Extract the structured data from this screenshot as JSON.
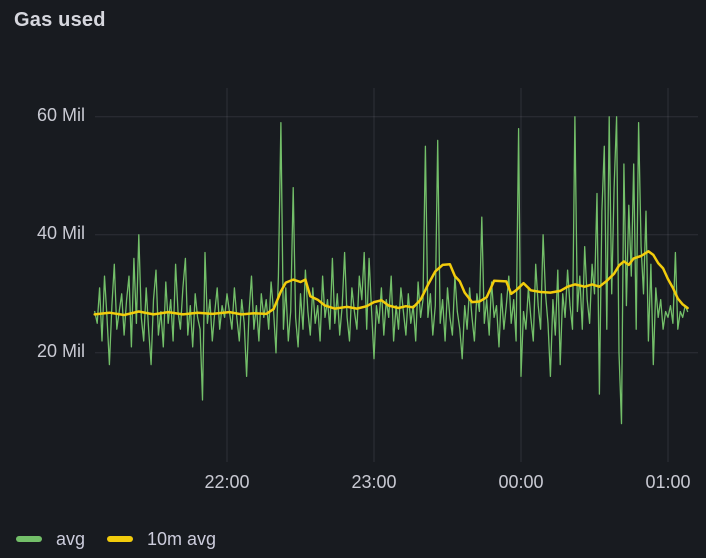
{
  "panel": {
    "title": "Gas used"
  },
  "colors": {
    "background": "#181b20",
    "title_text": "#d6d7de",
    "tick_text": "#c9cad3",
    "grid": "rgba(204,204,220,0.12)",
    "avg_series": "#73bf69",
    "ten_min_avg_series": "#f2cc0c"
  },
  "chart_data": {
    "type": "line",
    "title": "Gas used",
    "unit": "Mil (gas used, millions)",
    "grid": true,
    "legend_position": "bottom-left",
    "x_axis": {
      "start_time": "21:05",
      "end_time": "01:07",
      "tick_labels": [
        "22:00",
        "23:00",
        "00:00",
        "01:00"
      ],
      "tick_minutes_from_start": [
        55,
        115,
        175,
        235
      ]
    },
    "y_axis": {
      "tick_labels": [
        "60 Mil",
        "40 Mil",
        "20 Mil"
      ],
      "tick_values": [
        60,
        40,
        20
      ],
      "range_min": 2,
      "range_max": 64
    },
    "series": [
      {
        "name": "avg",
        "color": "#73bf69",
        "style": "noisy-line",
        "line_width": 1.3,
        "sample_interval_minutes": 1,
        "values": [
          27,
          25,
          31,
          22,
          33,
          26,
          18,
          28,
          35,
          24,
          27,
          30,
          23,
          29,
          33,
          21,
          36,
          25,
          40,
          26,
          22,
          31,
          24,
          18,
          29,
          34,
          23,
          27,
          21,
          32,
          25,
          29,
          22,
          35,
          27,
          24,
          31,
          36,
          23,
          28,
          21,
          30,
          26,
          24,
          12,
          37,
          25,
          29,
          22,
          27,
          31,
          24,
          28,
          26,
          30,
          27,
          24,
          31,
          26,
          22,
          29,
          25,
          16,
          27,
          33,
          24,
          28,
          22,
          30,
          26,
          29,
          24,
          32,
          27,
          20,
          33,
          59,
          24,
          31,
          22,
          27,
          48,
          26,
          21,
          30,
          24,
          34,
          27,
          23,
          31,
          25,
          28,
          22,
          33,
          26,
          29,
          24,
          36,
          25,
          30,
          23,
          28,
          37,
          26,
          22,
          31,
          27,
          24,
          33,
          29,
          37,
          24,
          36,
          27,
          19,
          28,
          25,
          31,
          23,
          29,
          26,
          33,
          22,
          28,
          24,
          31,
          27,
          23,
          30,
          25,
          28,
          22,
          32,
          26,
          29,
          55,
          26,
          30,
          23,
          28,
          56,
          25,
          29,
          22,
          31,
          26,
          23,
          33,
          27,
          24,
          19,
          28,
          24,
          31,
          26,
          22,
          30,
          27,
          43,
          25,
          29,
          23,
          32,
          26,
          28,
          21,
          30,
          24,
          28,
          33,
          25,
          29,
          22,
          58,
          16,
          27,
          24,
          31,
          26,
          22,
          35,
          28,
          24,
          40,
          30,
          25,
          16,
          29,
          23,
          34,
          18,
          30,
          26,
          34,
          28,
          24,
          60,
          27,
          33,
          24,
          38,
          29,
          25,
          35,
          30,
          47,
          13,
          44,
          55,
          24,
          60,
          30,
          48,
          60,
          20,
          8,
          52,
          28,
          45,
          33,
          52,
          24,
          59,
          38,
          30,
          44,
          22,
          35,
          18,
          31,
          26,
          29,
          24,
          27,
          26,
          28,
          25,
          37,
          24,
          27,
          26,
          28,
          27
        ]
      },
      {
        "name": "10m avg",
        "color": "#f2cc0c",
        "style": "smooth-line",
        "line_width": 2.5,
        "points": [
          [
            0,
            26.5
          ],
          [
            6,
            26.8
          ],
          [
            12,
            26.4
          ],
          [
            18,
            27.0
          ],
          [
            24,
            26.5
          ],
          [
            30,
            26.9
          ],
          [
            36,
            26.5
          ],
          [
            42,
            26.8
          ],
          [
            48,
            26.6
          ],
          [
            55,
            26.9
          ],
          [
            60,
            26.5
          ],
          [
            65,
            26.7
          ],
          [
            70,
            26.6
          ],
          [
            73,
            27.4
          ],
          [
            76,
            30.4
          ],
          [
            78,
            31.9
          ],
          [
            81,
            32.4
          ],
          [
            84,
            32.0
          ],
          [
            86,
            32.4
          ],
          [
            88,
            29.6
          ],
          [
            91,
            29.0
          ],
          [
            94,
            28.0
          ],
          [
            98,
            27.5
          ],
          [
            103,
            27.8
          ],
          [
            107,
            27.5
          ],
          [
            111,
            27.9
          ],
          [
            114,
            28.6
          ],
          [
            117,
            28.9
          ],
          [
            120,
            28.0
          ],
          [
            124,
            27.6
          ],
          [
            127,
            27.9
          ],
          [
            130,
            27.7
          ],
          [
            133,
            29.0
          ],
          [
            136,
            31.5
          ],
          [
            139,
            33.8
          ],
          [
            142,
            34.9
          ],
          [
            145,
            35.0
          ],
          [
            147,
            33.0
          ],
          [
            149,
            32.1
          ],
          [
            151,
            30.2
          ],
          [
            154,
            28.6
          ],
          [
            157,
            28.7
          ],
          [
            160,
            29.4
          ],
          [
            163,
            32.2
          ],
          [
            168,
            32.1
          ],
          [
            170,
            30.0
          ],
          [
            172,
            30.6
          ],
          [
            175,
            31.8
          ],
          [
            178,
            30.6
          ],
          [
            182,
            30.3
          ],
          [
            186,
            30.2
          ],
          [
            190,
            30.5
          ],
          [
            193,
            31.2
          ],
          [
            196,
            31.6
          ],
          [
            200,
            31.2
          ],
          [
            203,
            31.6
          ],
          [
            206,
            31.2
          ],
          [
            209,
            32.2
          ],
          [
            212,
            33.4
          ],
          [
            214,
            34.8
          ],
          [
            216,
            35.5
          ],
          [
            218,
            34.9
          ],
          [
            220,
            36.0
          ],
          [
            223,
            36.4
          ],
          [
            226,
            37.2
          ],
          [
            228,
            36.6
          ],
          [
            230,
            35.2
          ],
          [
            232,
            34.3
          ],
          [
            234,
            32.5
          ],
          [
            236,
            31.0
          ],
          [
            238,
            29.2
          ],
          [
            240,
            28.2
          ],
          [
            242,
            27.6
          ]
        ]
      }
    ]
  }
}
